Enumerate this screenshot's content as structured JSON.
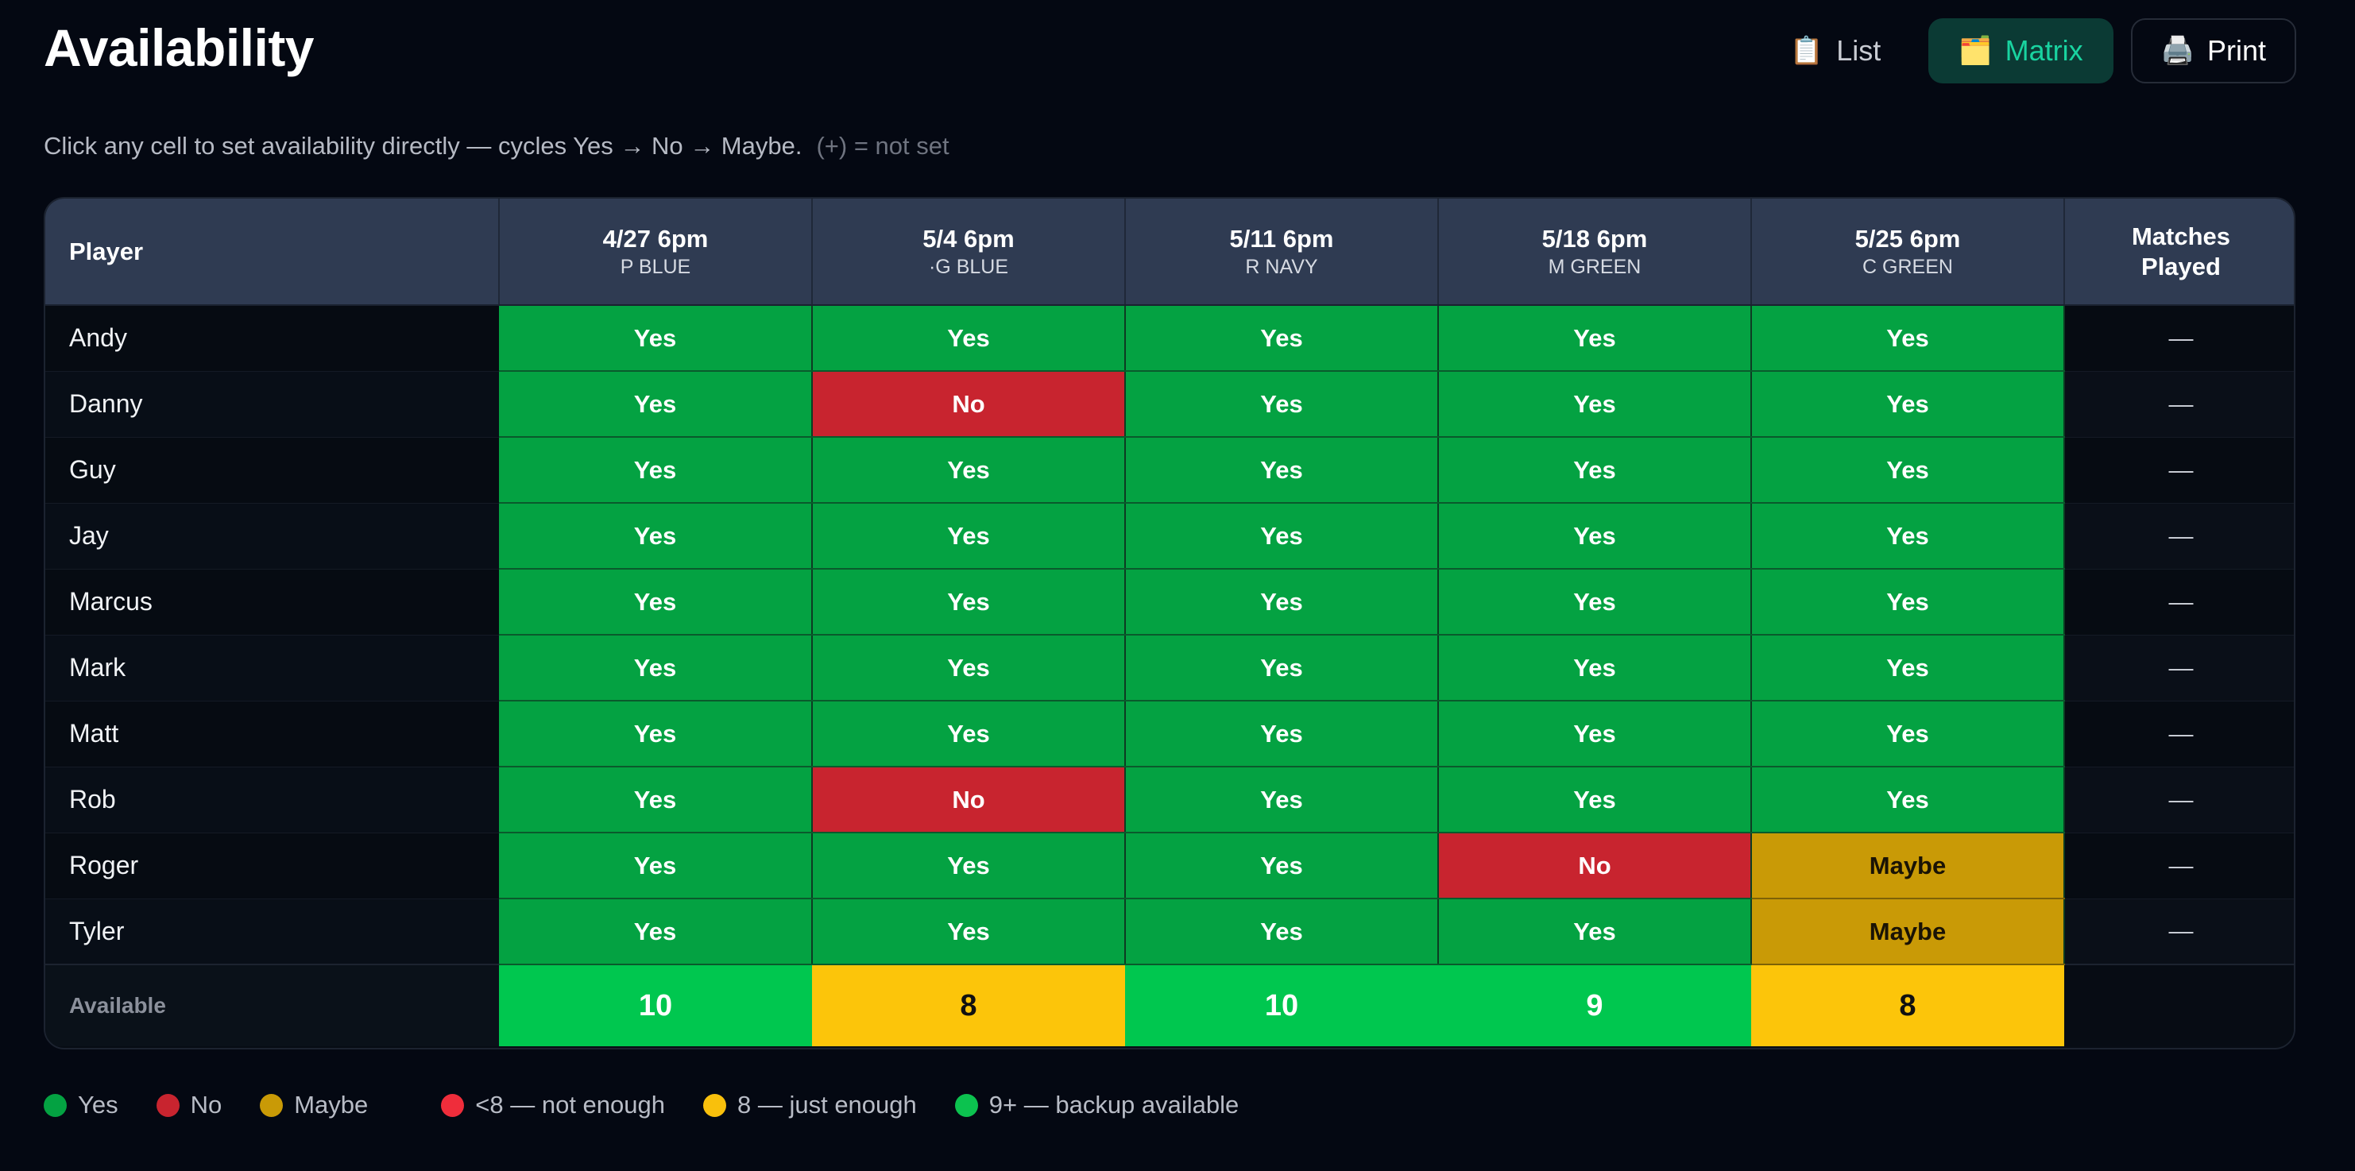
{
  "header": {
    "title": "Availability"
  },
  "views": {
    "list_label": "List",
    "list_icon": "📋",
    "matrix_label": "Matrix",
    "matrix_icon": "🗂️",
    "print_label": "Print",
    "print_icon": "🖨️"
  },
  "hint": {
    "text": "Click any cell to set availability directly — cycles Yes → No → Maybe.",
    "muted": "(+) = not set"
  },
  "table": {
    "player_header": "Player",
    "played_header_line1": "Matches",
    "played_header_line2": "Played",
    "matches": [
      {
        "date": "4/27 6pm",
        "team": "P BLUE"
      },
      {
        "date": "5/4 6pm",
        "team": "·G BLUE"
      },
      {
        "date": "5/11 6pm",
        "team": "R NAVY"
      },
      {
        "date": "5/18 6pm",
        "team": "M GREEN"
      },
      {
        "date": "5/25 6pm",
        "team": "C GREEN"
      }
    ],
    "rows": [
      {
        "name": "Andy",
        "cells": [
          "Yes",
          "Yes",
          "Yes",
          "Yes",
          "Yes"
        ],
        "played": "—"
      },
      {
        "name": "Danny",
        "cells": [
          "Yes",
          "No",
          "Yes",
          "Yes",
          "Yes"
        ],
        "played": "—"
      },
      {
        "name": "Guy",
        "cells": [
          "Yes",
          "Yes",
          "Yes",
          "Yes",
          "Yes"
        ],
        "played": "—"
      },
      {
        "name": "Jay",
        "cells": [
          "Yes",
          "Yes",
          "Yes",
          "Yes",
          "Yes"
        ],
        "played": "—"
      },
      {
        "name": "Marcus",
        "cells": [
          "Yes",
          "Yes",
          "Yes",
          "Yes",
          "Yes"
        ],
        "played": "—"
      },
      {
        "name": "Mark",
        "cells": [
          "Yes",
          "Yes",
          "Yes",
          "Yes",
          "Yes"
        ],
        "played": "—"
      },
      {
        "name": "Matt",
        "cells": [
          "Yes",
          "Yes",
          "Yes",
          "Yes",
          "Yes"
        ],
        "played": "—"
      },
      {
        "name": "Rob",
        "cells": [
          "Yes",
          "No",
          "Yes",
          "Yes",
          "Yes"
        ],
        "played": "—"
      },
      {
        "name": "Roger",
        "cells": [
          "Yes",
          "Yes",
          "Yes",
          "No",
          "Maybe"
        ],
        "played": "—"
      },
      {
        "name": "Tyler",
        "cells": [
          "Yes",
          "Yes",
          "Yes",
          "Yes",
          "Maybe"
        ],
        "played": "—"
      }
    ],
    "available_label": "Available",
    "totals": [
      "10",
      "8",
      "10",
      "9",
      "8"
    ]
  },
  "legend": {
    "yes": "Yes",
    "no": "No",
    "maybe": "Maybe",
    "not_enough": "<8 — not enough",
    "just_enough": "8 — just enough",
    "backup": "9+ — backup available"
  },
  "colors": {
    "yes": "#04a242",
    "no": "#c8242f",
    "maybe": "#c99a06",
    "total_green": "#00c74f",
    "total_yellow": "#fcc50a",
    "legend_not_enough": "#ef2d3b",
    "legend_just_enough": "#f9c00c",
    "legend_backup": "#0cc24f"
  }
}
